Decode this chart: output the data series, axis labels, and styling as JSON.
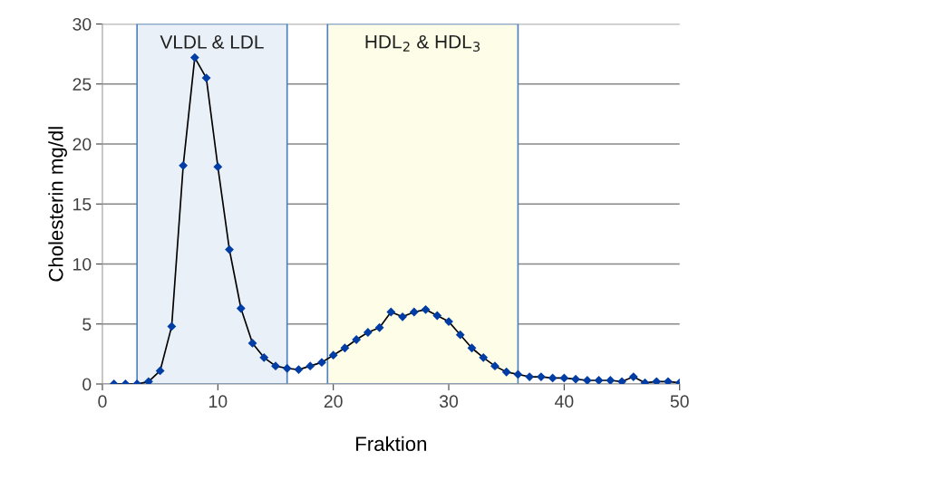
{
  "chart_data": {
    "type": "line",
    "xlabel": "Fraktion",
    "ylabel": "Cholesterin mg/dl",
    "x": [
      1,
      2,
      3,
      4,
      5,
      6,
      7,
      8,
      9,
      10,
      11,
      12,
      13,
      14,
      15,
      16,
      17,
      18,
      19,
      20,
      21,
      22,
      23,
      24,
      25,
      26,
      27,
      28,
      29,
      30,
      31,
      32,
      33,
      34,
      35,
      36,
      37,
      38,
      39,
      40,
      41,
      42,
      43,
      44,
      45,
      46,
      47,
      48,
      49,
      50
    ],
    "series": [
      {
        "color": "#003da5",
        "values": [
          0,
          0,
          0,
          0.2,
          1.1,
          4.8,
          18.2,
          27.2,
          25.5,
          18.1,
          11.2,
          6.3,
          3.4,
          2.2,
          1.5,
          1.3,
          1.2,
          1.5,
          1.8,
          2.4,
          3.0,
          3.7,
          4.3,
          4.7,
          6.0,
          5.6,
          6.0,
          6.2,
          5.7,
          5.2,
          4.1,
          3.0,
          2.2,
          1.5,
          1.0,
          0.8,
          0.6,
          0.6,
          0.5,
          0.5,
          0.4,
          0.3,
          0.3,
          0.3,
          0.2,
          0.6,
          0.1,
          0.2,
          0.2,
          0.1
        ]
      }
    ],
    "bands": [
      {
        "axis": "x",
        "from": 3,
        "to": 16,
        "label": "VLDL & LDL",
        "color": "#eaf0f8"
      },
      {
        "axis": "x",
        "from": 19.5,
        "to": 36,
        "label": "HDL$_{2}$ & HDL$_{3}$",
        "color": "#fefee8"
      }
    ],
    "xlim": [
      0,
      50
    ],
    "ylim": [
      0,
      30
    ],
    "xticks": [
      0,
      10,
      20,
      30,
      40,
      50
    ],
    "yticks": [
      0,
      5,
      10,
      15,
      20,
      25,
      30
    ],
    "grid": "y",
    "marker": "diamond",
    "line_style": "solid"
  }
}
